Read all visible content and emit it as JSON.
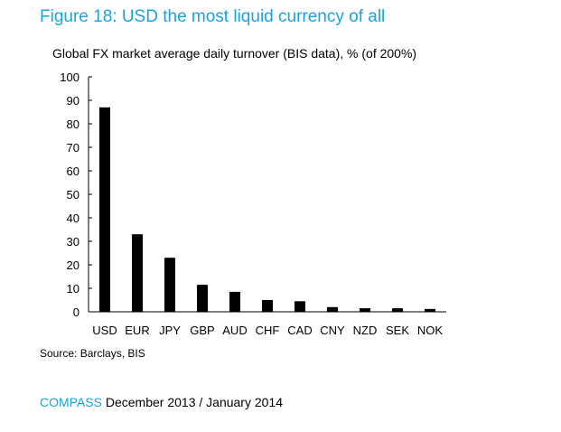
{
  "figure": {
    "title": "Figure 18: USD the most liquid currency of all",
    "subtitle": "Global FX market average daily turnover (BIS data), % (of 200%)",
    "source": "Source: Barclays, BIS"
  },
  "footer": {
    "brand": "COMPASS",
    "date": "December 2013 / January 2014"
  },
  "colors": {
    "accent": "#1aa3dd",
    "bar": "#000000"
  },
  "chart_data": {
    "type": "bar",
    "categories": [
      "USD",
      "EUR",
      "JPY",
      "GBP",
      "AUD",
      "CHF",
      "CAD",
      "CNY",
      "NZD",
      "SEK",
      "NOK"
    ],
    "values": [
      87,
      33,
      23,
      11.5,
      8.5,
      5,
      4.5,
      2,
      1.5,
      1.5,
      1.2
    ],
    "ylim": [
      0,
      100
    ],
    "yticks": [
      0,
      10,
      20,
      30,
      40,
      50,
      60,
      70,
      80,
      90,
      100
    ],
    "xlabel": "",
    "ylabel": "",
    "grid": false,
    "legend": "none"
  }
}
